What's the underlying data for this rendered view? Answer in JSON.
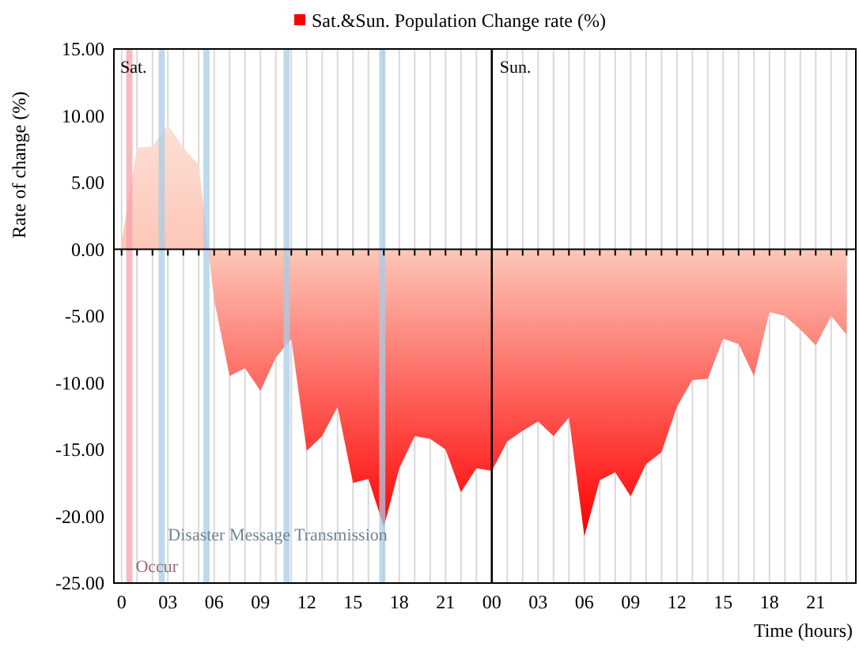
{
  "chart_data": {
    "type": "area",
    "xlabel": "Time (hours)",
    "ylabel": "Rate of change (%)",
    "x": [
      0,
      1,
      2,
      3,
      4,
      5,
      6,
      7,
      8,
      9,
      10,
      11,
      12,
      13,
      14,
      15,
      16,
      17,
      18,
      19,
      20,
      21,
      22,
      23,
      24,
      25,
      26,
      27,
      28,
      29,
      30,
      31,
      32,
      33,
      34,
      35,
      36,
      37,
      38,
      39,
      40,
      41,
      42,
      43,
      44,
      45,
      46,
      47
    ],
    "series": [
      {
        "name": "Sat.&Sun. Population Change rate (%)",
        "color": "#ff0000",
        "values": [
          0.5,
          7.6,
          7.7,
          9.3,
          7.6,
          6.3,
          -3.8,
          -9.5,
          -8.9,
          -10.6,
          -8.1,
          -6.7,
          -15.1,
          -14.0,
          -11.8,
          -17.5,
          -17.2,
          -20.8,
          -16.4,
          -14.0,
          -14.2,
          -15.0,
          -18.2,
          -16.4,
          -16.6,
          -14.4,
          -13.6,
          -12.9,
          -14.0,
          -12.6,
          -21.5,
          -17.3,
          -16.7,
          -18.5,
          -16.1,
          -15.2,
          -11.8,
          -9.8,
          -9.7,
          -6.7,
          -7.1,
          -9.5,
          -4.7,
          -5.0,
          -6.0,
          -7.2,
          -5.0,
          -6.4
        ]
      }
    ],
    "xlim": [
      -0.5,
      47.6
    ],
    "xticks": [
      0,
      {
        "value": 1,
        "label": null
      },
      {
        "value": 2,
        "label": null
      },
      {
        "value": 3,
        "label": "03"
      },
      {
        "value": 4,
        "label": null
      },
      {
        "value": 5,
        "label": null
      },
      {
        "value": 6,
        "label": "06"
      },
      {
        "value": 7,
        "label": null
      },
      {
        "value": 8,
        "label": null
      },
      {
        "value": 9,
        "label": "09"
      },
      {
        "value": 10,
        "label": null
      },
      {
        "value": 11,
        "label": null
      },
      12,
      {
        "value": 13,
        "label": null
      },
      {
        "value": 14,
        "label": null
      },
      15,
      {
        "value": 16,
        "label": null
      },
      {
        "value": 17,
        "label": null
      },
      18,
      {
        "value": 19,
        "label": null
      },
      {
        "value": 20,
        "label": null
      },
      21,
      {
        "value": 22,
        "label": null
      },
      {
        "value": 23,
        "label": null
      },
      {
        "value": 24,
        "label": "00"
      },
      {
        "value": 25,
        "label": null
      },
      {
        "value": 26,
        "label": null
      },
      {
        "value": 27,
        "label": "03"
      },
      {
        "value": 28,
        "label": null
      },
      {
        "value": 29,
        "label": null
      },
      {
        "value": 30,
        "label": "06"
      },
      {
        "value": 31,
        "label": null
      },
      {
        "value": 32,
        "label": null
      },
      {
        "value": 33,
        "label": "09"
      },
      {
        "value": 34,
        "label": null
      },
      {
        "value": 35,
        "label": null
      },
      {
        "value": 36,
        "label": "12"
      },
      {
        "value": 37,
        "label": null
      },
      {
        "value": 38,
        "label": null
      },
      {
        "value": 39,
        "label": "15"
      },
      {
        "value": 40,
        "label": null
      },
      {
        "value": 41,
        "label": null
      },
      {
        "value": 42,
        "label": "18"
      },
      {
        "value": 43,
        "label": null
      },
      {
        "value": 44,
        "label": null
      },
      {
        "value": 45,
        "label": "21"
      },
      {
        "value": 46,
        "label": null
      },
      {
        "value": 47,
        "label": null
      }
    ],
    "ylim": [
      -25,
      15
    ],
    "yticks": [
      {
        "value": 15,
        "label": "15.00"
      },
      {
        "value": 10,
        "label": "10.00"
      },
      {
        "value": 5,
        "label": "5.00"
      },
      {
        "value": 0,
        "label": "0.00"
      },
      {
        "value": -5,
        "label": "-5.00"
      },
      {
        "value": -10,
        "label": "-10.00"
      },
      {
        "value": -15,
        "label": "-15.00"
      },
      {
        "value": -20,
        "label": "-20.00"
      },
      {
        "value": -25,
        "label": "-25.00"
      }
    ],
    "grid": "x",
    "legend": "top",
    "bands": [
      {
        "axis": "x",
        "from": 0.3,
        "to": 0.7,
        "label": "Occur",
        "color": "#f4a0a8"
      },
      {
        "axis": "x",
        "from": 2.4,
        "to": 2.8,
        "label": "Disaster Message Transmission",
        "color": "#a8cce8"
      },
      {
        "axis": "x",
        "from": 5.3,
        "to": 5.7,
        "label": null,
        "color": "#a8cce8"
      },
      {
        "axis": "x",
        "from": 10.5,
        "to": 10.9,
        "label": null,
        "color": "#a8cce8"
      },
      {
        "axis": "x",
        "from": 16.7,
        "to": 17.1,
        "label": null,
        "color": "#a8cce8"
      }
    ],
    "ref_lines": [
      {
        "axis": "x",
        "value": 24,
        "label": "Sun."
      }
    ],
    "annotations": [
      "Sat."
    ]
  }
}
